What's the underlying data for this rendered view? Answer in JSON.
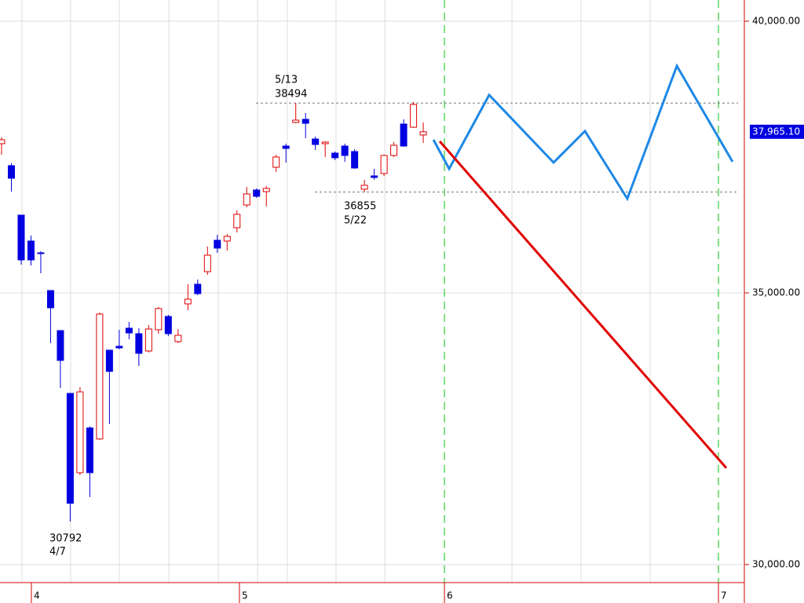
{
  "chart_data": {
    "type": "candlestick",
    "xlim": [
      -0.16,
      75.74
    ],
    "ylim": [
      29668,
      40390
    ],
    "yticks": [
      {
        "value": 40000,
        "label": "40,000.00"
      },
      {
        "value": 35000,
        "label": "35,000.00"
      },
      {
        "value": 30000,
        "label": "30,000.00"
      }
    ],
    "xticks": [
      {
        "value": 3.04,
        "label": "4"
      },
      {
        "value": 24.26,
        "label": "5"
      },
      {
        "value": 45.16,
        "label": "6"
      },
      {
        "value": 73.1,
        "label": "7"
      }
    ],
    "grid": true,
    "up_color": "#e00000",
    "down_color": "#0000e0",
    "open": [
      37746,
      37341,
      36431,
      35954,
      35737,
      35043,
      34306,
      33150,
      31691,
      32514,
      32312,
      33945,
      34017,
      34350,
      34249,
      33931,
      34321,
      34566,
      34104,
      34798,
      35159,
      35390,
      35968,
      35954,
      36199,
      36618,
      36893,
      36864,
      37312,
      37702,
      38136,
      38194,
      37832,
      37746,
      37572,
      37702,
      37601,
      36908,
      37153,
      37197,
      37529,
      38107,
      38049,
      37905
    ],
    "high": [
      37861,
      37384,
      36431,
      36055,
      35766,
      35043,
      34306,
      33150,
      33266,
      32543,
      34639,
      33945,
      34321,
      34465,
      34350,
      34408,
      34740,
      34595,
      34335,
      35159,
      35246,
      35853,
      36069,
      36084,
      36517,
      36951,
      36922,
      36965,
      37543,
      37746,
      38494,
      38309,
      37876,
      37789,
      37601,
      37746,
      37645,
      37081,
      37283,
      37543,
      37775,
      38194,
      38512,
      38136
    ],
    "low": [
      37543,
      36864,
      35520,
      35506,
      35361,
      34075,
      33251,
      30792,
      31647,
      31243,
      32298,
      32587,
      33960,
      34147,
      33656,
      33902,
      34249,
      34205,
      34075,
      34682,
      34957,
      35332,
      35737,
      35780,
      36113,
      36575,
      36749,
      36590,
      37225,
      37399,
      38121,
      37847,
      37630,
      37500,
      37442,
      37413,
      37283,
      36855,
      37081,
      37153,
      37500,
      37688,
      38035,
      37760
    ],
    "close": [
      37818,
      37110,
      35607,
      35607,
      35723,
      34725,
      33757,
      31127,
      33179,
      31691,
      34610,
      33555,
      33988,
      34263,
      33887,
      34335,
      34711,
      34249,
      34220,
      34884,
      34986,
      35694,
      35824,
      36040,
      36445,
      36821,
      36777,
      36922,
      37500,
      37659,
      38179,
      38121,
      37731,
      37775,
      37486,
      37529,
      37298,
      36980,
      37124,
      37529,
      37717,
      37702,
      38468,
      37965.1
    ],
    "reference_lines": [
      38494,
      36855
    ],
    "annotations": [
      "5/13",
      "38494",
      "36855",
      "5/22",
      "30792",
      "4/7"
    ],
    "last_price": {
      "value": 37965.1,
      "label": "37,965.10"
    },
    "forecast": [
      {
        "color": "#1e88e5",
        "x": [
          44.04,
          45.64,
          49.72,
          56.29,
          59.49,
          63.81,
          68.86,
          74.54
        ],
        "values": [
          37818,
          37283,
          38642,
          37399,
          37977,
          36734,
          39176,
          37413
        ]
      },
      {
        "color": "#e00000",
        "x": [
          44.68,
          73.9
        ],
        "values": [
          37789,
          31777
        ]
      }
    ]
  }
}
